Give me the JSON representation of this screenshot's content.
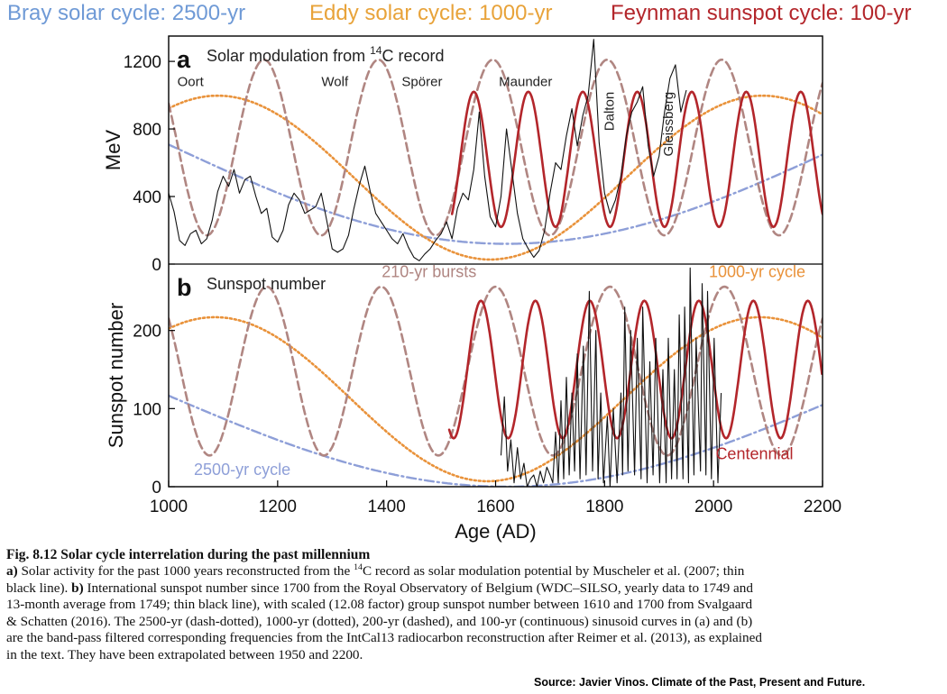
{
  "header": {
    "bray": "Bray solar cycle: 2500-yr",
    "eddy": "Eddy solar cycle: 1000-yr",
    "feynman": "Feynman sunspot cycle: 100-yr"
  },
  "colors": {
    "bray": "#8e9fd8",
    "eddy": "#e9923a",
    "burst": "#b08682",
    "feynman": "#b3262b",
    "record": "#111111"
  },
  "chart_data": [
    {
      "type": "line",
      "panel_letter": "a",
      "title": "Solar modulation from",
      "title_sup": "14",
      "title_tail": "C record",
      "ylabel": "MeV",
      "xlim": [
        1000,
        2200
      ],
      "ylim": [
        0,
        1350
      ],
      "yticks": [
        0,
        400,
        800,
        1200
      ],
      "annotations": [
        {
          "text": "Oort",
          "x": 1040,
          "y": 1055,
          "rotate": 0
        },
        {
          "text": "Wolf",
          "x": 1305,
          "y": 1055,
          "rotate": 0
        },
        {
          "text": "Spörer",
          "x": 1465,
          "y": 1055,
          "rotate": 0
        },
        {
          "text": "Maunder",
          "x": 1655,
          "y": 1055,
          "rotate": 0
        },
        {
          "text": "Dalton",
          "x": 1817,
          "y": 1020,
          "rotate": -90
        },
        {
          "text": "Gleissberg",
          "x": 1925,
          "y": 1020,
          "rotate": -90
        }
      ],
      "series": [
        {
          "key": "bray",
          "style": "dash-dot",
          "period": 2500,
          "phase_min": 1620,
          "center": 715,
          "amp": 595,
          "x": [
            1000,
            2200
          ]
        },
        {
          "key": "eddy",
          "style": "dotted",
          "period": 1000,
          "phase_max": 1090,
          "center": 512,
          "amp": 485,
          "x": [
            1000,
            2200
          ]
        },
        {
          "key": "burst",
          "style": "dashed",
          "period": 210,
          "phase_max": 1175,
          "center": 690,
          "amp": 520,
          "x": [
            1000,
            2200
          ]
        },
        {
          "key": "feynman",
          "style": "solid",
          "period": 100,
          "phase_max": 1760,
          "center": 620,
          "amp": 400,
          "x": [
            1520,
            2200
          ]
        }
      ],
      "record": {
        "x": [
          1000,
          1010,
          1020,
          1030,
          1040,
          1050,
          1060,
          1070,
          1080,
          1090,
          1100,
          1110,
          1120,
          1130,
          1140,
          1150,
          1160,
          1170,
          1180,
          1190,
          1200,
          1210,
          1220,
          1230,
          1240,
          1250,
          1260,
          1270,
          1280,
          1290,
          1300,
          1310,
          1320,
          1330,
          1340,
          1350,
          1360,
          1370,
          1380,
          1390,
          1400,
          1410,
          1420,
          1430,
          1440,
          1450,
          1460,
          1470,
          1480,
          1490,
          1500,
          1510,
          1520,
          1530,
          1540,
          1550,
          1560,
          1570,
          1580,
          1590,
          1600,
          1610,
          1620,
          1630,
          1640,
          1650,
          1660,
          1670,
          1680,
          1690,
          1700,
          1710,
          1720,
          1730,
          1740,
          1750,
          1760,
          1770,
          1780,
          1790,
          1800,
          1810,
          1820,
          1830,
          1840,
          1850,
          1860,
          1870,
          1880,
          1890,
          1900,
          1910,
          1920,
          1930,
          1940,
          1950
        ],
        "y": [
          420,
          310,
          140,
          110,
          180,
          200,
          120,
          150,
          260,
          430,
          520,
          460,
          560,
          420,
          500,
          520,
          400,
          300,
          330,
          160,
          130,
          200,
          350,
          420,
          380,
          300,
          320,
          340,
          420,
          260,
          90,
          70,
          90,
          170,
          330,
          470,
          580,
          430,
          300,
          250,
          200,
          150,
          120,
          180,
          100,
          40,
          20,
          60,
          90,
          140,
          180,
          250,
          150,
          330,
          420,
          380,
          560,
          900,
          520,
          280,
          220,
          400,
          800,
          550,
          300,
          150,
          90,
          40,
          80,
          200,
          420,
          600,
          560,
          760,
          920,
          700,
          880,
          1000,
          1330,
          720,
          420,
          300,
          380,
          520,
          760,
          900,
          960,
          1050,
          700,
          520,
          640,
          900,
          1100,
          1180,
          900,
          1030
        ]
      }
    },
    {
      "type": "line",
      "panel_letter": "b",
      "title": "Sunspot number",
      "ylabel": "Sunspot number",
      "xlabel": "Age (AD)",
      "xlim": [
        1000,
        2200
      ],
      "ylim": [
        0,
        285
      ],
      "yticks": [
        0,
        100,
        200
      ],
      "xticks": [
        1000,
        1200,
        1400,
        1600,
        1800,
        2000,
        2200
      ],
      "labels": [
        {
          "text": "210-yr bursts",
          "key": "burst",
          "x": 1478,
          "y": 268
        },
        {
          "text": "1000-yr cycle",
          "key": "eddy",
          "x": 2080,
          "y": 268
        },
        {
          "text": "2500-yr cycle",
          "key": "bray",
          "x": 1135,
          "y": 15
        },
        {
          "text": "Centennial",
          "key": "feynman",
          "x": 2075,
          "y": 35
        }
      ],
      "series": [
        {
          "key": "bray",
          "style": "dash-dot",
          "period": 2500,
          "phase_min": 1620,
          "center": 118,
          "amp": 118,
          "x": [
            1000,
            2200
          ]
        },
        {
          "key": "eddy",
          "style": "dotted",
          "period": 1000,
          "phase_max": 1085,
          "center": 112,
          "amp": 105,
          "x": [
            1000,
            2200
          ]
        },
        {
          "key": "burst",
          "style": "dashed",
          "period": 210,
          "phase_max": 1180,
          "center": 148,
          "amp": 108,
          "x": [
            1000,
            2200
          ]
        },
        {
          "key": "feynman",
          "style": "solid",
          "period": 100,
          "phase_max": 1773,
          "center": 150,
          "amp": 88,
          "x": [
            1515,
            2200
          ]
        }
      ],
      "record": {
        "x": [
          1610,
          1616,
          1622,
          1628,
          1634,
          1640,
          1646,
          1652,
          1658,
          1664,
          1670,
          1676,
          1682,
          1688,
          1694,
          1700,
          1705,
          1710,
          1715,
          1720,
          1725,
          1730,
          1735,
          1740,
          1745,
          1750,
          1755,
          1761,
          1766,
          1772,
          1778,
          1784,
          1788,
          1793,
          1798,
          1805,
          1810,
          1816,
          1823,
          1830,
          1833,
          1837,
          1843,
          1848,
          1855,
          1860,
          1867,
          1870,
          1878,
          1883,
          1889,
          1894,
          1901,
          1907,
          1913,
          1917,
          1923,
          1928,
          1933,
          1937,
          1944,
          1947,
          1954,
          1957,
          1964,
          1968,
          1976,
          1979,
          1986,
          1989,
          1996,
          2001,
          2008,
          2014
        ],
        "y": [
          40,
          115,
          20,
          60,
          5,
          50,
          10,
          30,
          0,
          10,
          15,
          0,
          20,
          5,
          25,
          15,
          5,
          70,
          5,
          110,
          10,
          140,
          15,
          120,
          20,
          170,
          10,
          180,
          15,
          250,
          20,
          200,
          10,
          120,
          5,
          90,
          0,
          100,
          5,
          120,
          15,
          230,
          20,
          200,
          15,
          190,
          10,
          230,
          5,
          160,
          15,
          190,
          5,
          150,
          5,
          190,
          10,
          150,
          10,
          220,
          10,
          230,
          5,
          280,
          15,
          190,
          20,
          260,
          15,
          250,
          10,
          190,
          5,
          120
        ]
      }
    }
  ],
  "caption": {
    "title": "Fig. 8.12 Solar cycle interrelation during the past millennium",
    "l1_bold": "a)",
    "l1_pre": " Solar activity for the past 1000 years reconstructed from the ",
    "l1_sup": "14",
    "l1_post": "C record as solar modulation potential by Muscheler et al. (2007; thin",
    "l2_pre": "black line). ",
    "l2_bold": "b)",
    "l2_post": " International sunspot number since 1700 from the Royal Observatory of Belgium (WDC–SILSO, yearly data to 1749 and",
    "l3": "13-month average from 1749; thin black line), with scaled (12.08 factor) group sunspot number between 1610 and 1700 from Svalgaard",
    "l4": "& Schatten (2016). The 2500-yr (dash-dotted), 1000-yr (dotted), 200-yr (dashed), and 100-yr (continuous) sinusoid curves in (a) and (b)",
    "l5": "are the band-pass filtered corresponding frequencies from the IntCal13 radiocarbon reconstruction after Reimer et al. (2013), as explained",
    "l6": "in the text. They have been extrapolated between 1950 and 2200.",
    "source": "Source: Javier Vinos.  Climate of the Past, Present and Future."
  }
}
